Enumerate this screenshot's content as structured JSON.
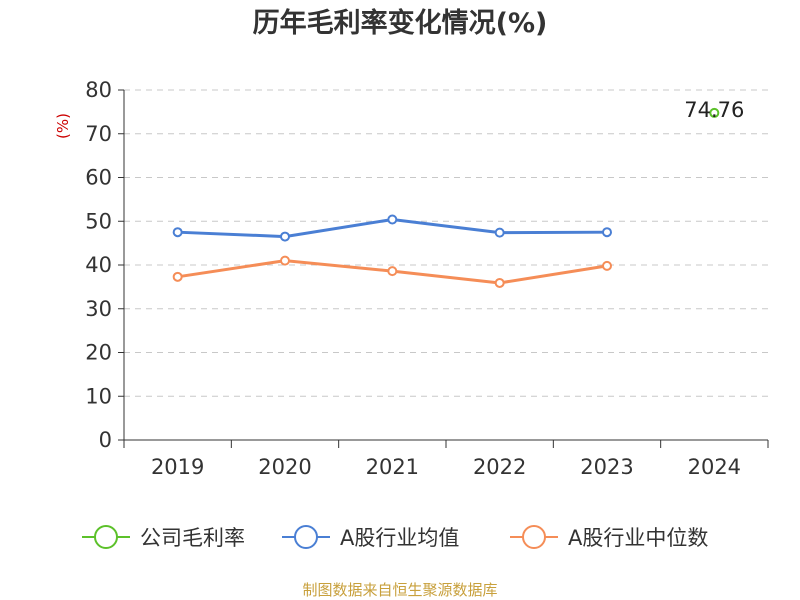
{
  "chart_data": {
    "type": "line",
    "title": "历年毛利率变化情况(%)",
    "unit_label": "(%)",
    "categories": [
      "2019",
      "2020",
      "2021",
      "2022",
      "2023",
      "2024"
    ],
    "ylim": [
      0,
      80
    ],
    "yticks": [
      "0",
      "10",
      "20",
      "30",
      "40",
      "50",
      "60",
      "70",
      "80"
    ],
    "grid": true,
    "legend_position": "bottom",
    "series": [
      {
        "name": "公司毛利率",
        "color": "#5cc12a",
        "values": [
          null,
          null,
          null,
          null,
          null,
          74.76
        ]
      },
      {
        "name": "A股行业均值",
        "color": "#4a7fd4",
        "values": [
          47.5,
          46.5,
          50.4,
          47.4,
          47.5,
          null
        ]
      },
      {
        "name": "A股行业中位数",
        "color": "#f58d57",
        "values": [
          37.3,
          41.0,
          38.6,
          35.9,
          39.8,
          null
        ]
      }
    ],
    "data_labels": [
      {
        "series": 0,
        "index": 5,
        "text": "74.76"
      }
    ],
    "source": "制图数据来自恒生聚源数据库"
  }
}
